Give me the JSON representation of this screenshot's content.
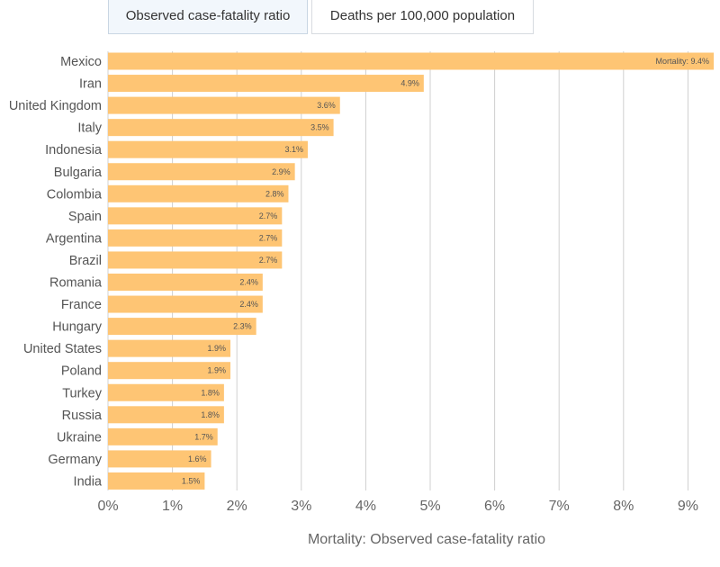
{
  "tabs": [
    {
      "label": "Observed case-fatality ratio",
      "active": true
    },
    {
      "label": "Deaths per 100,000 population",
      "active": false
    }
  ],
  "colors": {
    "bar": "#fec574",
    "grid": "#d0d0d0",
    "active_tab_bg": "#f2f7fc"
  },
  "chart_data": {
    "type": "bar",
    "orientation": "horizontal",
    "categories": [
      "Mexico",
      "Iran",
      "United Kingdom",
      "Italy",
      "Indonesia",
      "Bulgaria",
      "Colombia",
      "Spain",
      "Argentina",
      "Brazil",
      "Romania",
      "France",
      "Hungary",
      "United States",
      "Poland",
      "Turkey",
      "Russia",
      "Ukraine",
      "Germany",
      "India"
    ],
    "values": [
      9.4,
      4.9,
      3.6,
      3.5,
      3.1,
      2.9,
      2.8,
      2.7,
      2.7,
      2.7,
      2.4,
      2.4,
      2.3,
      1.9,
      1.9,
      1.8,
      1.8,
      1.7,
      1.6,
      1.5
    ],
    "data_labels": [
      "Mortality: 9.4%",
      "4.9%",
      "3.6%",
      "3.5%",
      "3.1%",
      "2.9%",
      "2.8%",
      "2.7%",
      "2.7%",
      "2.7%",
      "2.4%",
      "2.4%",
      "2.3%",
      "1.9%",
      "1.9%",
      "1.8%",
      "1.8%",
      "1.7%",
      "1.6%",
      "1.5%"
    ],
    "xticks": [
      "0%",
      "1%",
      "2%",
      "3%",
      "4%",
      "5%",
      "6%",
      "7%",
      "8%",
      "9%"
    ],
    "xlim": [
      0,
      9.4
    ],
    "xlabel": "Mortality: Observed case-fatality ratio",
    "ylabel": "",
    "title": "",
    "grid": "vertical"
  }
}
